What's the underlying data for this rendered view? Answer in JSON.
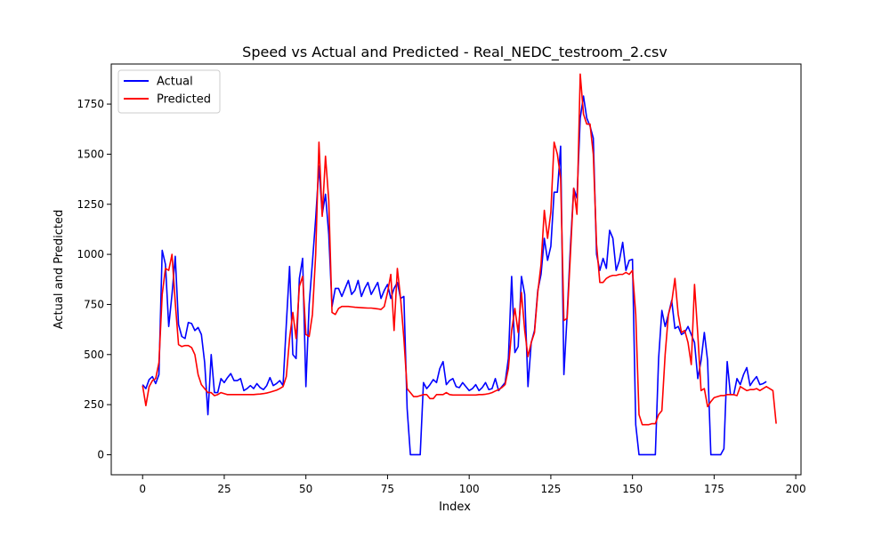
{
  "chart_data": {
    "type": "line",
    "title": "Speed vs Actual and Predicted - Real_NEDC_testroom_2.csv",
    "xlabel": "Index",
    "ylabel": "Actual and Predicted",
    "xlim": [
      -9.6,
      201.6
    ],
    "ylim": [
      -100,
      1950
    ],
    "xticks": [
      0,
      25,
      50,
      75,
      100,
      125,
      150,
      175,
      200
    ],
    "yticks": [
      0,
      250,
      500,
      750,
      1000,
      1250,
      1500,
      1750
    ],
    "legend": "top-left",
    "grid": false,
    "series": [
      {
        "name": "Actual",
        "color": "#0000ff",
        "values": [
          350,
          330,
          375,
          390,
          355,
          400,
          1020,
          950,
          640,
          800,
          990,
          650,
          590,
          580,
          660,
          655,
          620,
          635,
          600,
          460,
          200,
          500,
          310,
          310,
          380,
          360,
          385,
          405,
          370,
          370,
          380,
          320,
          330,
          345,
          330,
          355,
          335,
          325,
          345,
          385,
          345,
          355,
          370,
          345,
          650,
          940,
          500,
          480,
          880,
          980,
          340,
          750,
          960,
          1180,
          1440,
          1200,
          1300,
          1100,
          740,
          830,
          830,
          790,
          830,
          870,
          800,
          820,
          870,
          790,
          830,
          860,
          800,
          830,
          860,
          780,
          820,
          850,
          780,
          830,
          860,
          780,
          790,
          230,
          0,
          0,
          0,
          0,
          360,
          330,
          350,
          375,
          360,
          430,
          465,
          350,
          370,
          380,
          340,
          335,
          360,
          340,
          320,
          330,
          350,
          320,
          335,
          360,
          325,
          330,
          380,
          320,
          340,
          360,
          480,
          890,
          510,
          540,
          890,
          800,
          340,
          560,
          620,
          820,
          900,
          1080,
          970,
          1040,
          1310,
          1310,
          1540,
          400,
          700,
          1040,
          1330,
          1280,
          1680,
          1790,
          1680,
          1640,
          1580,
          1000,
          920,
          980,
          930,
          1120,
          1080,
          920,
          970,
          1060,
          920,
          970,
          975,
          150,
          0,
          0,
          0,
          0,
          0,
          0,
          480,
          720,
          640,
          700,
          770,
          630,
          640,
          600,
          610,
          640,
          600,
          560,
          380,
          470,
          610,
          470,
          0,
          0,
          0,
          0,
          30,
          465,
          300,
          300,
          380,
          350,
          400,
          435,
          345,
          370,
          390,
          350,
          355,
          365
        ]
      },
      {
        "name": "Predicted",
        "color": "#ff0000",
        "values": [
          345,
          245,
          340,
          370,
          380,
          460,
          800,
          930,
          920,
          1000,
          760,
          550,
          540,
          545,
          545,
          535,
          500,
          400,
          350,
          330,
          310,
          310,
          295,
          300,
          310,
          305,
          300,
          300,
          300,
          300,
          300,
          300,
          300,
          300,
          300,
          302,
          303,
          305,
          308,
          312,
          317,
          322,
          330,
          340,
          390,
          580,
          710,
          580,
          840,
          890,
          600,
          590,
          700,
          1000,
          1560,
          1190,
          1490,
          1270,
          710,
          700,
          730,
          740,
          740,
          740,
          738,
          736,
          735,
          734,
          733,
          732,
          732,
          730,
          728,
          725,
          740,
          810,
          900,
          620,
          930,
          780,
          580,
          330,
          310,
          290,
          290,
          295,
          300,
          300,
          280,
          280,
          300,
          300,
          300,
          310,
          300,
          298,
          298,
          298,
          298,
          298,
          298,
          298,
          298,
          300,
          300,
          302,
          305,
          310,
          318,
          325,
          335,
          350,
          430,
          620,
          730,
          610,
          810,
          620,
          490,
          560,
          610,
          810,
          950,
          1220,
          1080,
          1210,
          1560,
          1500,
          1380,
          670,
          680,
          1000,
          1330,
          1200,
          1900,
          1700,
          1650,
          1650,
          1500,
          1050,
          860,
          860,
          880,
          890,
          895,
          895,
          900,
          900,
          910,
          900,
          920,
          700,
          200,
          150,
          150,
          150,
          155,
          155,
          200,
          220,
          500,
          700,
          760,
          880,
          700,
          610,
          620,
          560,
          450,
          850,
          600,
          320,
          330,
          240,
          265,
          285,
          290,
          295,
          295,
          300,
          300,
          300,
          295,
          340,
          330,
          320,
          325,
          325,
          330,
          320,
          330,
          340,
          330,
          320,
          155
        ]
      }
    ]
  }
}
